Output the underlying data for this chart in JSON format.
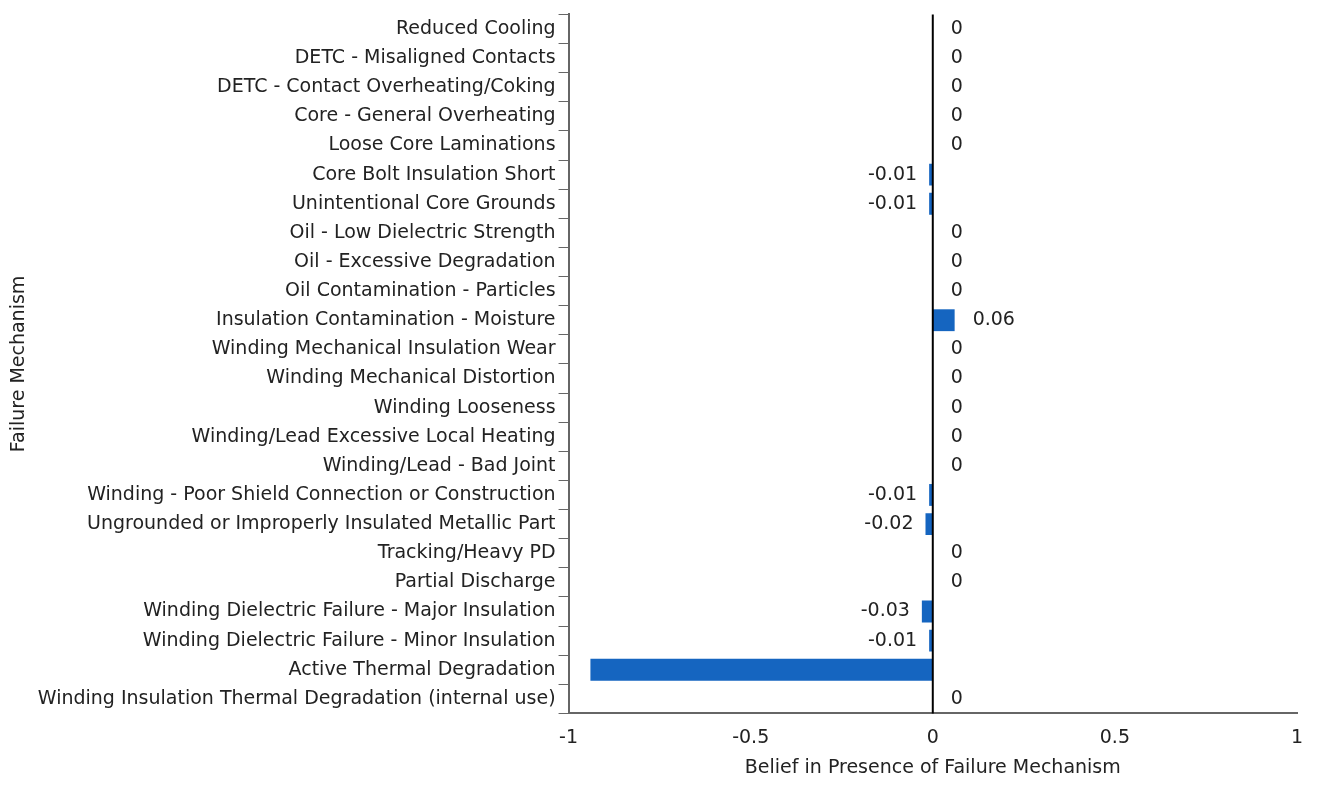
{
  "chart_data": {
    "type": "bar",
    "orientation": "horizontal",
    "xlabel": "Belief in Presence of Failure Mechanism",
    "ylabel": "Failure Mechanism",
    "categories": [
      "Reduced Cooling",
      "DETC - Misaligned Contacts",
      "DETC - Contact Overheating/Coking",
      "Core - General Overheating",
      "Loose Core Laminations",
      "Core Bolt Insulation Short",
      "Unintentional Core Grounds",
      "Oil - Low Dielectric Strength",
      "Oil - Excessive Degradation",
      "Oil Contamination - Particles",
      "Insulation Contamination - Moisture",
      "Winding Mechanical Insulation Wear",
      "Winding Mechanical Distortion",
      "Winding Looseness",
      "Winding/Lead Excessive Local Heating",
      "Winding/Lead - Bad Joint",
      "Winding - Poor Shield Connection or Construction",
      "Ungrounded or Improperly Insulated Metallic Part",
      "Tracking/Heavy PD",
      "Partial Discharge",
      "Winding Dielectric Failure - Major Insulation",
      "Winding Dielectric Failure - Minor Insulation",
      "Active Thermal Degradation",
      "Winding Insulation Thermal Degradation (internal use)"
    ],
    "values": [
      0,
      0,
      0,
      0,
      0,
      -0.01,
      -0.01,
      0,
      0,
      0,
      0.06,
      0,
      0,
      0,
      0,
      0,
      -0.01,
      -0.02,
      0,
      0,
      -0.03,
      -0.01,
      -0.94,
      0
    ],
    "value_labels": [
      "0",
      "0",
      "0",
      "0",
      "0",
      "-0.01",
      "-0.01",
      "0",
      "0",
      "0",
      "0.06",
      "0",
      "0",
      "0",
      "0",
      "0",
      "-0.01",
      "-0.02",
      "0",
      "0",
      "-0.03",
      "-0.01",
      null,
      "0"
    ],
    "color": "#1565c0",
    "xlim": [
      -1,
      1
    ],
    "xticks": [
      -1,
      -0.5,
      0,
      0.5,
      1
    ],
    "ref_lines": [
      {
        "axis": "x",
        "value": 0,
        "color": "#000000"
      }
    ],
    "grid": false,
    "legend": false
  }
}
